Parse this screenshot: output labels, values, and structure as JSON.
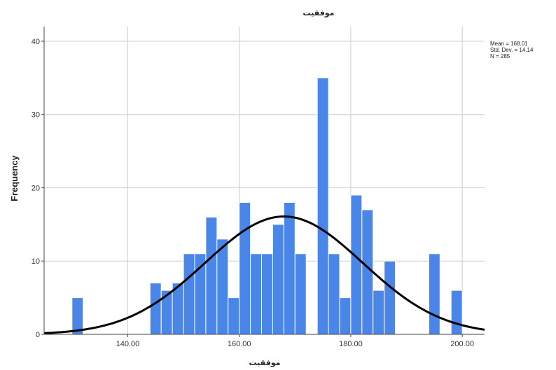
{
  "chart_data": {
    "type": "bar",
    "subtype": "histogram",
    "title": "موفقیت",
    "xlabel": "موفقیت",
    "ylabel": "Frequency",
    "xlim": [
      125,
      204
    ],
    "ylim": [
      0,
      42
    ],
    "x_ticks": [
      140,
      160,
      180,
      200
    ],
    "x_tick_labels": [
      "140.00",
      "160.00",
      "180.00",
      "200.00"
    ],
    "y_ticks": [
      0,
      10,
      20,
      30,
      40
    ],
    "y_tick_labels": [
      "0",
      "10",
      "20",
      "30",
      "40"
    ],
    "grid": true,
    "bar_color": "#4a86e8",
    "bin_width": 2,
    "bins": [
      {
        "x": 131,
        "count": 5
      },
      {
        "x": 145,
        "count": 7
      },
      {
        "x": 147,
        "count": 6
      },
      {
        "x": 149,
        "count": 7
      },
      {
        "x": 151,
        "count": 11
      },
      {
        "x": 153,
        "count": 11
      },
      {
        "x": 155,
        "count": 16
      },
      {
        "x": 157,
        "count": 13
      },
      {
        "x": 159,
        "count": 5
      },
      {
        "x": 161,
        "count": 18
      },
      {
        "x": 163,
        "count": 11
      },
      {
        "x": 165,
        "count": 11
      },
      {
        "x": 167,
        "count": 15
      },
      {
        "x": 169,
        "count": 18
      },
      {
        "x": 171,
        "count": 11
      },
      {
        "x": 175,
        "count": 35
      },
      {
        "x": 177,
        "count": 11
      },
      {
        "x": 179,
        "count": 5
      },
      {
        "x": 181,
        "count": 19
      },
      {
        "x": 183,
        "count": 17
      },
      {
        "x": 185,
        "count": 6
      },
      {
        "x": 187,
        "count": 10
      },
      {
        "x": 195,
        "count": 11
      },
      {
        "x": 199,
        "count": 6
      }
    ],
    "normal_curve": {
      "mean": 168.01,
      "std": 14.14,
      "n": 285,
      "color": "#000000"
    },
    "stats_lines": [
      "Mean = 168.01",
      "Std. Dev. = 14.14",
      "N = 285"
    ]
  }
}
